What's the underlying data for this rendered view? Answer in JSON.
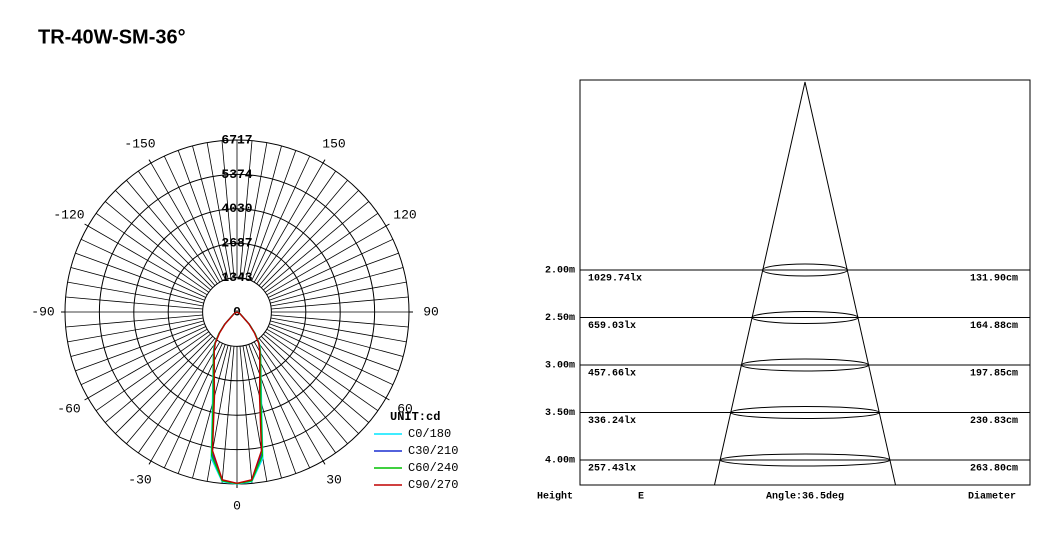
{
  "title": "TR-40W-SM-36°",
  "chart_data": [
    {
      "type": "polar",
      "x": [
        -90,
        -60,
        -45,
        -40,
        -35,
        -30,
        -25,
        -20,
        -15,
        -10,
        -5,
        0,
        5,
        10,
        15,
        20,
        25,
        30,
        35,
        40,
        45,
        60,
        90
      ],
      "series": [
        {
          "name": "C0/180",
          "color": "#00e5ff",
          "values": [
            0,
            150,
            700,
            1100,
            1550,
            1850,
            2200,
            2750,
            3700,
            5800,
            6650,
            6717,
            6650,
            5800,
            3700,
            2750,
            2200,
            1850,
            1550,
            1100,
            700,
            150,
            0
          ]
        },
        {
          "name": "C30/210",
          "color": "#1a2fd0",
          "values": [
            0,
            140,
            680,
            1080,
            1500,
            1800,
            2150,
            2650,
            3500,
            5600,
            6600,
            6700,
            6600,
            5600,
            3500,
            2650,
            2150,
            1800,
            1500,
            1080,
            680,
            140,
            0
          ]
        },
        {
          "name": "C60/240",
          "color": "#00c000",
          "values": [
            0,
            140,
            690,
            1090,
            1520,
            1820,
            2180,
            2700,
            3600,
            5700,
            6620,
            6705,
            6620,
            5700,
            3600,
            2700,
            2180,
            1820,
            1520,
            1090,
            690,
            140,
            0
          ]
        },
        {
          "name": "C90/270",
          "color": "#c00000",
          "values": [
            0,
            130,
            660,
            1050,
            1480,
            1780,
            2100,
            2600,
            3400,
            5500,
            6580,
            6690,
            6580,
            5500,
            3400,
            2600,
            2100,
            1780,
            1480,
            1050,
            660,
            130,
            0
          ]
        }
      ],
      "ylim": [
        0,
        6717
      ],
      "yticks": [
        0,
        1343,
        2687,
        4030,
        5374,
        6717
      ],
      "xticks": [
        -150,
        -120,
        -90,
        -60,
        -30,
        0,
        30,
        60,
        90,
        120,
        150
      ],
      "unit_label": "UNIT:cd"
    },
    {
      "type": "cone",
      "heights": [
        2.0,
        2.5,
        3.0,
        3.5,
        4.0
      ],
      "height_labels": [
        "2.00m",
        "2.50m",
        "3.00m",
        "3.50m",
        "4.00m"
      ],
      "illuminance": [
        1029.74,
        659.03,
        457.66,
        336.24,
        257.43
      ],
      "illuminance_labels": [
        "1029.74lx",
        "659.03lx",
        "457.66lx",
        "336.24lx",
        "257.43lx"
      ],
      "diameters": [
        131.9,
        164.88,
        197.85,
        230.83,
        263.8
      ],
      "diameter_labels": [
        "131.90cm",
        "164.88cm",
        "197.85cm",
        "230.83cm",
        "263.80cm"
      ],
      "angle": 36.5,
      "angle_label": "Angle:36.5deg",
      "column_labels": [
        "Height",
        "E",
        "Diameter"
      ]
    }
  ]
}
